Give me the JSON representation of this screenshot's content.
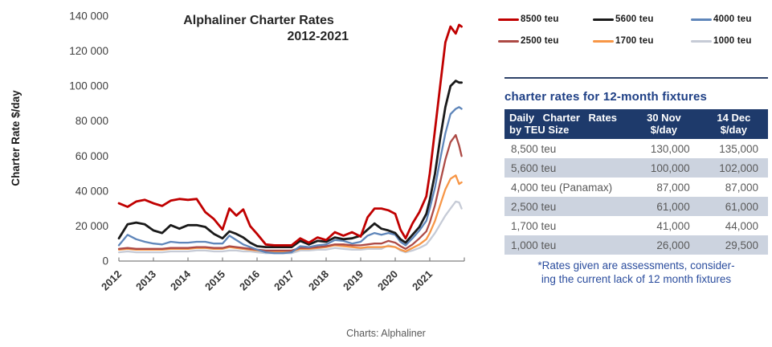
{
  "page": {
    "caption": "Charts: Alphaliner",
    "background": "#ffffff"
  },
  "chart": {
    "title_line1": "Alphaliner Charter Rates",
    "title_line2": "2012-2021",
    "y_axis_label": "Charter Rate $/day",
    "y_ticks": [
      "140 000",
      "120 000",
      "100 000",
      "80 000",
      "60 000",
      "40 000",
      "20 000",
      "0"
    ],
    "x_ticks": [
      "2012",
      "2013",
      "2014",
      "2015",
      "2016",
      "2017",
      "2018",
      "2019",
      "2020",
      "2021"
    ]
  },
  "legend": {
    "items": [
      {
        "label": "8500 teu",
        "color": "#c00000"
      },
      {
        "label": "5600 teu",
        "color": "#1a1a1a"
      },
      {
        "label": "4000 teu",
        "color": "#5f86ba"
      },
      {
        "label": "2500 teu",
        "color": "#ad4a45"
      },
      {
        "label": "1700 teu",
        "color": "#f79646"
      },
      {
        "label": "1000 teu",
        "color": "#c6cbd6"
      }
    ]
  },
  "chart_data": {
    "type": "line",
    "title": "Alphaliner Charter Rates 2012-2021",
    "xlabel": "",
    "ylabel": "Charter Rate $/day",
    "x_range": [
      2012,
      2022
    ],
    "ylim": [
      0,
      140000
    ],
    "grid": false,
    "legend_position": "top-right",
    "x": [
      2012.0,
      2012.25,
      2012.5,
      2012.75,
      2013.0,
      2013.25,
      2013.5,
      2013.75,
      2014.0,
      2014.25,
      2014.5,
      2014.75,
      2015.0,
      2015.2,
      2015.4,
      2015.6,
      2015.8,
      2016.0,
      2016.25,
      2016.5,
      2016.75,
      2017.0,
      2017.25,
      2017.5,
      2017.75,
      2018.0,
      2018.25,
      2018.5,
      2018.75,
      2019.0,
      2019.2,
      2019.4,
      2019.6,
      2019.8,
      2020.0,
      2020.15,
      2020.3,
      2020.5,
      2020.7,
      2020.9,
      2021.0,
      2021.15,
      2021.3,
      2021.45,
      2021.6,
      2021.75,
      2021.85,
      2021.92
    ],
    "series": [
      {
        "name": "8500 teu",
        "color": "#c00000",
        "values": [
          33000,
          31000,
          34000,
          35000,
          33000,
          31500,
          34500,
          35500,
          35000,
          35500,
          28000,
          24000,
          18000,
          30000,
          26000,
          29500,
          20000,
          15500,
          9500,
          9000,
          9000,
          9000,
          13000,
          10500,
          13500,
          12000,
          16500,
          14500,
          16500,
          14000,
          25000,
          30000,
          30000,
          29000,
          27000,
          18000,
          13000,
          21500,
          28000,
          37000,
          50000,
          75000,
          100000,
          125000,
          134000,
          130000,
          135000,
          134000
        ]
      },
      {
        "name": "5600 teu",
        "color": "#1a1a1a",
        "values": [
          13000,
          21000,
          22000,
          21000,
          17500,
          16000,
          20500,
          18500,
          20500,
          20500,
          19500,
          15500,
          13000,
          17000,
          15500,
          13500,
          10500,
          8500,
          8000,
          8000,
          8000,
          8000,
          11500,
          9500,
          11500,
          11000,
          13500,
          12500,
          13000,
          14500,
          18000,
          21500,
          18500,
          17500,
          16000,
          12500,
          10500,
          15000,
          19500,
          27000,
          35000,
          50000,
          70000,
          88000,
          100000,
          103000,
          102000,
          102000
        ]
      },
      {
        "name": "4000 teu",
        "color": "#5f86ba",
        "values": [
          9000,
          15000,
          12500,
          11000,
          10000,
          9500,
          11000,
          10500,
          10500,
          11000,
          11000,
          10000,
          10000,
          14500,
          12000,
          9500,
          8000,
          6500,
          5000,
          4500,
          4500,
          5000,
          8500,
          8000,
          9000,
          9500,
          12000,
          11500,
          10000,
          11000,
          14500,
          16000,
          15000,
          16000,
          15000,
          11000,
          9000,
          13000,
          17500,
          23000,
          30000,
          42000,
          58000,
          73000,
          84000,
          87000,
          88000,
          87000
        ]
      },
      {
        "name": "2500 teu",
        "color": "#ad4a45",
        "values": [
          7000,
          7500,
          7000,
          7000,
          7000,
          7000,
          7500,
          7500,
          7500,
          8000,
          8000,
          7500,
          7500,
          8500,
          8000,
          7500,
          7000,
          6500,
          6000,
          6000,
          6000,
          6000,
          7500,
          7500,
          8000,
          8500,
          9500,
          9500,
          9000,
          9000,
          9500,
          10000,
          10000,
          11500,
          10500,
          8500,
          7000,
          9500,
          13000,
          17000,
          22000,
          32000,
          45000,
          58000,
          68000,
          72000,
          66000,
          60000
        ]
      },
      {
        "name": "1700 teu",
        "color": "#f79646",
        "values": [
          6500,
          7000,
          6500,
          6500,
          6500,
          6500,
          7000,
          7000,
          7000,
          7500,
          7500,
          7000,
          7000,
          8000,
          7500,
          7000,
          6500,
          6000,
          5500,
          5500,
          5500,
          5500,
          7000,
          7000,
          7500,
          8000,
          9000,
          8500,
          8000,
          7500,
          8000,
          8000,
          8000,
          8500,
          8000,
          6500,
          5500,
          7500,
          9500,
          12500,
          16000,
          23000,
          32000,
          41000,
          47000,
          49000,
          44000,
          45000
        ]
      },
      {
        "name": "1000 teu",
        "color": "#c6cbd6",
        "values": [
          5000,
          5500,
          5000,
          5000,
          5000,
          5000,
          5500,
          5500,
          5500,
          6000,
          6000,
          5500,
          5500,
          6000,
          6000,
          5500,
          5500,
          5000,
          4500,
          4500,
          4500,
          4500,
          6000,
          6000,
          6500,
          6500,
          7500,
          7000,
          6500,
          6500,
          7000,
          7000,
          7000,
          9000,
          8000,
          6000,
          5000,
          6000,
          7500,
          9500,
          12000,
          16000,
          21000,
          26000,
          30000,
          34000,
          33500,
          30000
        ]
      }
    ]
  },
  "panel": {
    "title": "charter rates for 12-month fixtures",
    "table": {
      "header": {
        "col1_line1": "Daily Charter Rates",
        "col1_line2": "by TEU Size",
        "col2_line1": "30 Nov",
        "col2_line2": "$/day",
        "col3_line1": "14 Dec",
        "col3_line2": "$/day"
      },
      "rows": [
        {
          "label": "8,500 teu",
          "nov30": "130,000",
          "dec14": "135,000"
        },
        {
          "label": "5,600 teu",
          "nov30": "100,000",
          "dec14": "102,000"
        },
        {
          "label": "4,000 teu (Panamax)",
          "nov30": "87,000",
          "dec14": "87,000"
        },
        {
          "label": "2,500 teu",
          "nov30": "61,000",
          "dec14": "61,000"
        },
        {
          "label": "1,700 teu",
          "nov30": "41,000",
          "dec14": "44,000"
        },
        {
          "label": "1,000 teu",
          "nov30": "26,000",
          "dec14": "29,500"
        }
      ]
    },
    "footnote_line1": "*Rates given are assessments, consider-",
    "footnote_line2": "ing the current lack of 12 month fixtures"
  }
}
